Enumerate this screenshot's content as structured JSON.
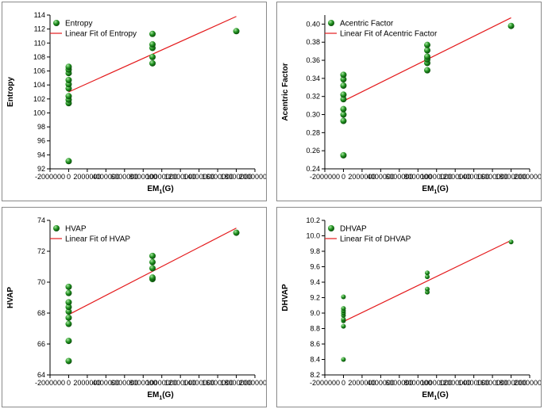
{
  "colors": {
    "point": "#1f8f1f",
    "point_highlight": "#a8e6a0",
    "fit_line": "#e41a1c",
    "axis": "#000000"
  },
  "chart_data": [
    {
      "type": "scatter",
      "title": "",
      "xlabel_main": "EM",
      "xlabel_sub": "1",
      "xlabel_suffix": "(G)",
      "ylabel": "Entropy",
      "xlim": [
        -2000000,
        20000000
      ],
      "ylim": [
        92,
        114
      ],
      "xticks": [
        -2000000,
        0,
        2000000,
        4000000,
        6000000,
        8000000,
        10000000,
        12000000,
        14000000,
        16000000,
        18000000,
        20000000
      ],
      "xtick_labels": [
        "-2000000",
        "0",
        "2000000",
        "4000000",
        "6000000",
        "8000000",
        "10000000",
        "12000000",
        "14000000",
        "16000000",
        "18000000",
        "20000000"
      ],
      "yticks": [
        92,
        94,
        96,
        98,
        100,
        102,
        104,
        106,
        108,
        110,
        112,
        114
      ],
      "ytick_labels": [
        "92",
        "94",
        "96",
        "98",
        "100",
        "102",
        "104",
        "106",
        "108",
        "110",
        "112",
        "114"
      ],
      "legend": {
        "scatter": "Entropy",
        "line": "Linear Fit of Entropy"
      },
      "points": [
        [
          0,
          93.1
        ],
        [
          0,
          101.4
        ],
        [
          0,
          101.9
        ],
        [
          0,
          102.4
        ],
        [
          0,
          103.5
        ],
        [
          0,
          104.1
        ],
        [
          0,
          104.7
        ],
        [
          0,
          105.7
        ],
        [
          0,
          106.2
        ],
        [
          0,
          106.6
        ],
        [
          9000000,
          107.1
        ],
        [
          9000000,
          108.0
        ],
        [
          9000000,
          109.3
        ],
        [
          9000000,
          109.8
        ],
        [
          9000000,
          111.3
        ],
        [
          18000000,
          111.7
        ]
      ],
      "fit": {
        "x": [
          0,
          18000000
        ],
        "y": [
          103.0,
          113.8
        ]
      }
    },
    {
      "type": "scatter",
      "title": "",
      "xlabel_main": "EM",
      "xlabel_sub": "1",
      "xlabel_suffix": "(G)",
      "ylabel": "Acentric Factor",
      "xlim": [
        -2000000,
        20000000
      ],
      "ylim": [
        0.24,
        0.41
      ],
      "xticks": [
        -2000000,
        0,
        2000000,
        4000000,
        6000000,
        8000000,
        10000000,
        12000000,
        14000000,
        16000000,
        18000000,
        20000000
      ],
      "xtick_labels": [
        "-2000000",
        "0",
        "2000000",
        "4000000",
        "6000000",
        "8000000",
        "10000000",
        "12000000",
        "14000000",
        "16000000",
        "18000000",
        "20000000"
      ],
      "yticks": [
        0.24,
        0.26,
        0.28,
        0.3,
        0.32,
        0.34,
        0.36,
        0.38,
        0.4
      ],
      "ytick_labels": [
        "0.24",
        "0.26",
        "0.28",
        "0.30",
        "0.32",
        "0.34",
        "0.36",
        "0.38",
        "0.40"
      ],
      "legend": {
        "scatter": "Acentric Factor",
        "line": "Linear Fit of Acentric Factor"
      },
      "points": [
        [
          0,
          0.255
        ],
        [
          0,
          0.293
        ],
        [
          0,
          0.3
        ],
        [
          0,
          0.306
        ],
        [
          0,
          0.317
        ],
        [
          0,
          0.322
        ],
        [
          0,
          0.332
        ],
        [
          0,
          0.339
        ],
        [
          0,
          0.344
        ],
        [
          9000000,
          0.349
        ],
        [
          9000000,
          0.357
        ],
        [
          9000000,
          0.361
        ],
        [
          9000000,
          0.364
        ],
        [
          9000000,
          0.371
        ],
        [
          9000000,
          0.377
        ],
        [
          18000000,
          0.398
        ]
      ],
      "fit": {
        "x": [
          0,
          18000000
        ],
        "y": [
          0.315,
          0.407
        ]
      }
    },
    {
      "type": "scatter",
      "title": "",
      "xlabel_main": "EM",
      "xlabel_sub": "1",
      "xlabel_suffix": "(G)",
      "ylabel": "HVAP",
      "xlim": [
        -2000000,
        20000000
      ],
      "ylim": [
        64,
        74
      ],
      "xticks": [
        -2000000,
        0,
        2000000,
        4000000,
        6000000,
        8000000,
        10000000,
        12000000,
        14000000,
        16000000,
        18000000,
        20000000
      ],
      "xtick_labels": [
        "-2000000",
        "0",
        "2000000",
        "4000000",
        "6000000",
        "8000000",
        "10000000",
        "12000000",
        "14000000",
        "16000000",
        "18000000",
        "20000000"
      ],
      "yticks": [
        64,
        66,
        68,
        70,
        72,
        74
      ],
      "ytick_labels": [
        "64",
        "66",
        "68",
        "70",
        "72",
        "74"
      ],
      "legend": {
        "scatter": "HVAP",
        "line": "Linear Fit of HVAP"
      },
      "points": [
        [
          0,
          64.9
        ],
        [
          0,
          66.2
        ],
        [
          0,
          67.3
        ],
        [
          0,
          67.7
        ],
        [
          0,
          68.1
        ],
        [
          0,
          68.4
        ],
        [
          0,
          68.7
        ],
        [
          0,
          69.3
        ],
        [
          0,
          69.7
        ],
        [
          9000000,
          70.2
        ],
        [
          9000000,
          70.3
        ],
        [
          9000000,
          70.9
        ],
        [
          9000000,
          71.3
        ],
        [
          9000000,
          71.7
        ],
        [
          18000000,
          73.2
        ]
      ],
      "fit": {
        "x": [
          0,
          18000000
        ],
        "y": [
          67.9,
          73.5
        ]
      }
    },
    {
      "type": "scatter",
      "title": "",
      "xlabel_main": "EM",
      "xlabel_sub": "1",
      "xlabel_suffix": "(G)",
      "ylabel": "DHVAP",
      "xlim": [
        -2000000,
        20000000
      ],
      "ylim": [
        8.2,
        10.2
      ],
      "xticks": [
        -2000000,
        0,
        2000000,
        4000000,
        6000000,
        8000000,
        10000000,
        12000000,
        14000000,
        16000000,
        18000000,
        20000000
      ],
      "xtick_labels": [
        "-2000000",
        "0",
        "2000000",
        "4000000",
        "6000000",
        "8000000",
        "10000000",
        "12000000",
        "14000000",
        "16000000",
        "18000000",
        "20000000"
      ],
      "yticks": [
        8.2,
        8.4,
        8.6,
        8.8,
        9.0,
        9.2,
        9.4,
        9.6,
        9.8,
        10.0,
        10.2
      ],
      "ytick_labels": [
        "8.2",
        "8.4",
        "8.6",
        "8.8",
        "9.0",
        "9.2",
        "9.4",
        "9.6",
        "9.8",
        "10.0",
        "10.2"
      ],
      "legend": {
        "scatter": "DHVAP",
        "line": "Linear Fit of DHVAP"
      },
      "points": [
        [
          0,
          8.4
        ],
        [
          0,
          8.83
        ],
        [
          0,
          8.9
        ],
        [
          0,
          8.92
        ],
        [
          0,
          8.97
        ],
        [
          0,
          9.0
        ],
        [
          0,
          9.03
        ],
        [
          0,
          9.06
        ],
        [
          0,
          9.21
        ],
        [
          9000000,
          9.27
        ],
        [
          9000000,
          9.31
        ],
        [
          9000000,
          9.47
        ],
        [
          9000000,
          9.52
        ],
        [
          18000000,
          9.92
        ]
      ],
      "fit": {
        "x": [
          0,
          18000000
        ],
        "y": [
          8.89,
          9.94
        ]
      }
    }
  ]
}
